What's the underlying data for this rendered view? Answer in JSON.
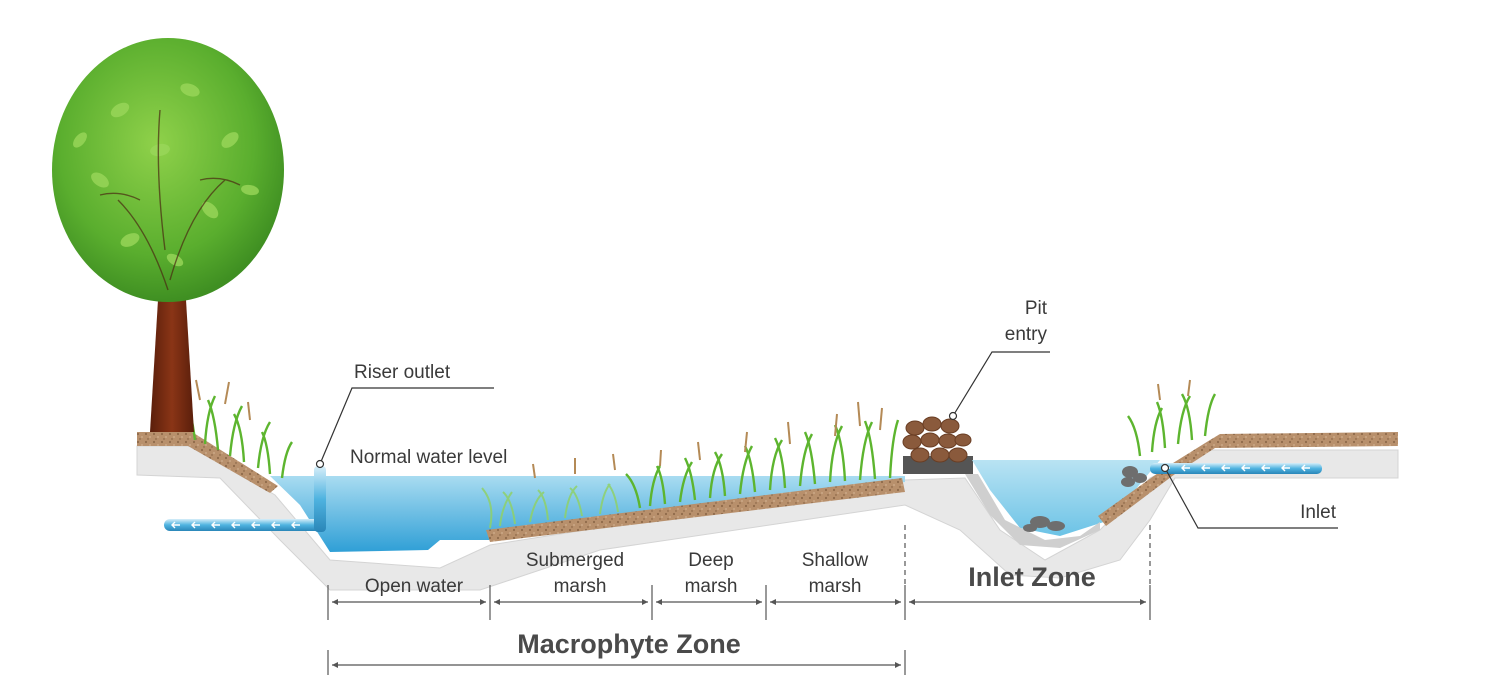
{
  "callouts": {
    "riser_outlet": "Riser outlet",
    "normal_water_level": "Normal water level",
    "pit_entry_line1": "Pit",
    "pit_entry_line2": "entry",
    "inlet": "Inlet"
  },
  "zones": {
    "open_water": "Open water",
    "submerged_marsh_line1": "Submerged",
    "submerged_marsh_line2": "marsh",
    "deep_marsh_line1": "Deep",
    "deep_marsh_line2": "marsh",
    "shallow_marsh_line1": "Shallow",
    "shallow_marsh_line2": "marsh",
    "inlet_zone": "Inlet Zone",
    "macrophyte_zone": "Macrophyte Zone"
  },
  "colors": {
    "water": "#55b8e2",
    "soil": "#b48a66",
    "gravel": "#e6e6e6",
    "grass": "#6cc038",
    "tree_canopy": "#6fbf3a",
    "tree_trunk": "#7a2b12"
  }
}
